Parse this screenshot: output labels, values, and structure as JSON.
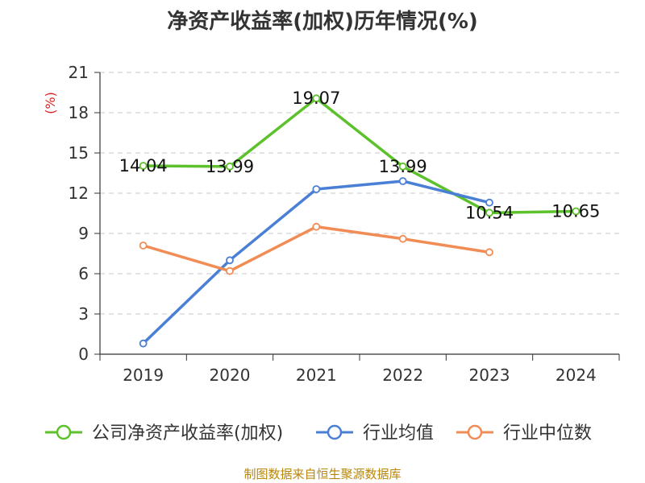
{
  "chart_data": {
    "type": "line",
    "title": "净资产收益率(加权)历年情况(%)",
    "unit_label": "(%)",
    "source": "制图数据来自恒生聚源数据库",
    "categories": [
      "2019",
      "2020",
      "2021",
      "2022",
      "2023",
      "2024"
    ],
    "ylim": [
      0,
      21
    ],
    "yticks": [
      "0",
      "3",
      "6",
      "9",
      "12",
      "15",
      "18",
      "21"
    ],
    "grid": true,
    "legend_position": "bottom",
    "series": [
      {
        "name": "公司净资产收益率(加权)",
        "color": "#5cc12a",
        "values": [
          14.04,
          13.99,
          19.07,
          13.99,
          10.54,
          10.65
        ],
        "labels": [
          "14.04",
          "13.99",
          "19.07",
          "13.99",
          "10.54",
          "10.65"
        ]
      },
      {
        "name": "行业均值",
        "color": "#4a7fd6",
        "values": [
          0.8,
          7.0,
          12.3,
          12.9,
          11.3,
          null
        ]
      },
      {
        "name": "行业中位数",
        "color": "#f28c55",
        "values": [
          8.1,
          6.2,
          9.5,
          8.6,
          7.6,
          null
        ]
      }
    ]
  }
}
